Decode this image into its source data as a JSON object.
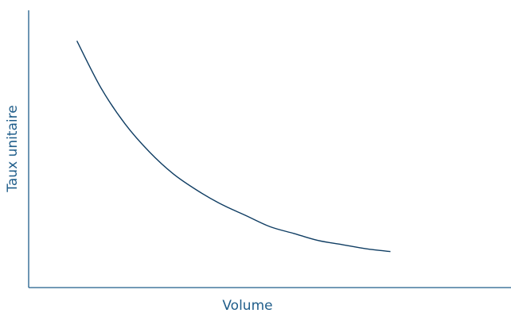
{
  "chart_data": {
    "type": "line",
    "title": "",
    "xlabel": "Volume",
    "ylabel": "Taux unitaire",
    "xlim": [
      0,
      100
    ],
    "ylim": [
      0,
      100
    ],
    "grid": false,
    "legend": "none",
    "show_ticks": false,
    "series": [
      {
        "x": [
          10,
          15,
          20,
          25,
          30,
          35,
          40,
          45,
          50,
          55,
          60,
          65,
          70,
          75
        ],
        "y": [
          89,
          72,
          59,
          49,
          41,
          35,
          30,
          26,
          22,
          19.5,
          17,
          15.5,
          14,
          13
        ],
        "color": "#0f3d63"
      }
    ],
    "colors": {
      "axis": "#1f5d8a",
      "label": "#1f5d8a"
    }
  }
}
